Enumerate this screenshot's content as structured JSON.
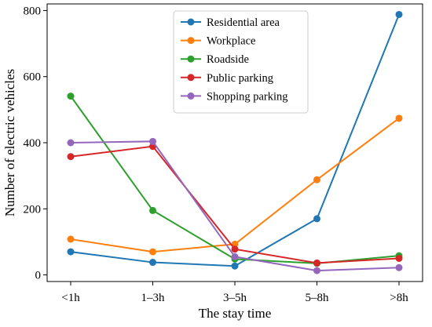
{
  "chart_data": {
    "type": "line",
    "xlabel": "The stay time",
    "ylabel": "Number of electric vehicles",
    "categories": [
      "<1h",
      "1–3h",
      "3–5h",
      "5–8h",
      ">8h"
    ],
    "yticks": [
      0,
      200,
      400,
      600,
      800
    ],
    "ylim": [
      -20,
      820
    ],
    "grid": false,
    "legend_position": "top-center",
    "series": [
      {
        "name": "Residential area",
        "color": "#1f77b4",
        "values": [
          70,
          38,
          27,
          170,
          788
        ]
      },
      {
        "name": "Workplace",
        "color": "#ff7f0e",
        "values": [
          108,
          70,
          93,
          288,
          474
        ]
      },
      {
        "name": "Roadside",
        "color": "#2ca02c",
        "values": [
          541,
          195,
          48,
          35,
          58
        ]
      },
      {
        "name": "Public parking",
        "color": "#d62728",
        "values": [
          358,
          389,
          78,
          36,
          50
        ]
      },
      {
        "name": "Shopping parking",
        "color": "#9467bd",
        "values": [
          400,
          404,
          55,
          13,
          22
        ]
      }
    ]
  }
}
